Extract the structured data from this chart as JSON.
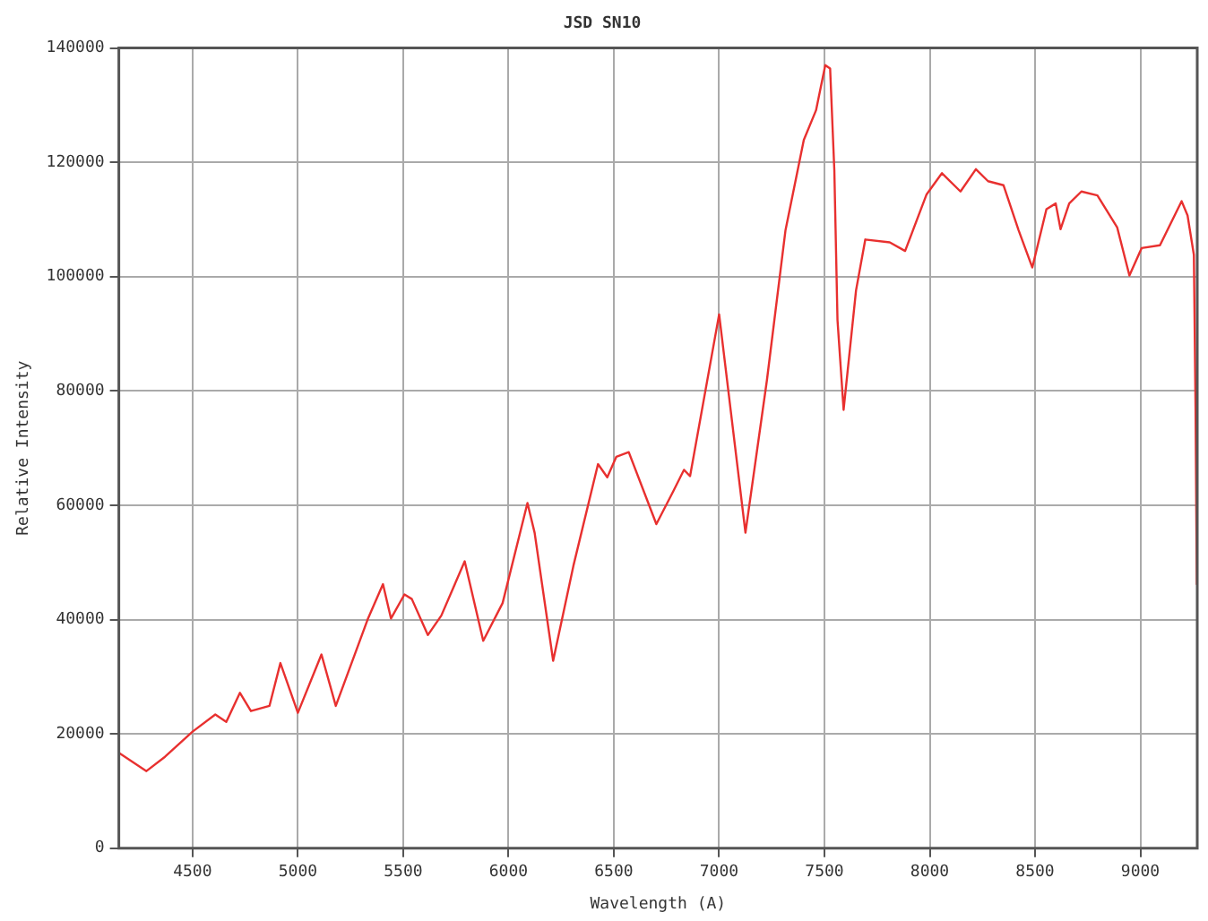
{
  "chart_data": {
    "type": "line",
    "title": "JSD SN10",
    "xlabel": "Wavelength (A)",
    "ylabel": "Relative Intensity",
    "xlim": [
      4150,
      9270
    ],
    "ylim": [
      0,
      140000
    ],
    "xticks": [
      4500,
      5000,
      5500,
      6000,
      6500,
      7000,
      7500,
      8000,
      8500,
      9000
    ],
    "yticks": [
      0,
      20000,
      40000,
      60000,
      80000,
      100000,
      120000,
      140000
    ],
    "grid": true,
    "legend": false,
    "marker": "none",
    "line_style": "solid",
    "series": [
      {
        "color": "#e8302f",
        "x": [
          4150,
          4281,
          4369,
          4500,
          4608,
          4660,
          4725,
          4777,
          4865,
          4917,
          5000,
          5112,
          5180,
          5331,
          5404,
          5442,
          5506,
          5541,
          5617,
          5681,
          5792,
          5880,
          5972,
          6090,
          6124,
          6212,
          6308,
          6425,
          6469,
          6512,
          6571,
          6702,
          6783,
          6833,
          6862,
          7000,
          7125,
          7227,
          7315,
          7402,
          7460,
          7504,
          7527,
          7547,
          7562,
          7591,
          7650,
          7694,
          7810,
          7883,
          7985,
          8058,
          8146,
          8219,
          8277,
          8350,
          8422,
          8487,
          8554,
          8598,
          8621,
          8662,
          8720,
          8796,
          8890,
          8948,
          9006,
          9093,
          9196,
          9224,
          9254,
          9262,
          9268
        ],
        "values": [
          16700,
          13500,
          16000,
          20400,
          23400,
          22100,
          27200,
          24000,
          24900,
          32400,
          23700,
          33900,
          24900,
          40000,
          46200,
          40200,
          44400,
          43600,
          37300,
          40700,
          50200,
          36300,
          42900,
          60400,
          55200,
          32800,
          49400,
          67200,
          64900,
          68500,
          69300,
          56700,
          62500,
          66200,
          65100,
          93400,
          55200,
          81900,
          108100,
          123900,
          129100,
          137000,
          136400,
          118600,
          92400,
          76700,
          97600,
          106500,
          106000,
          104500,
          114400,
          118100,
          114900,
          118800,
          116700,
          116000,
          108100,
          101600,
          111800,
          112800,
          108300,
          112800,
          114900,
          114200,
          108600,
          100200,
          105000,
          105500,
          113200,
          110700,
          103800,
          76700,
          46200
        ]
      }
    ]
  }
}
